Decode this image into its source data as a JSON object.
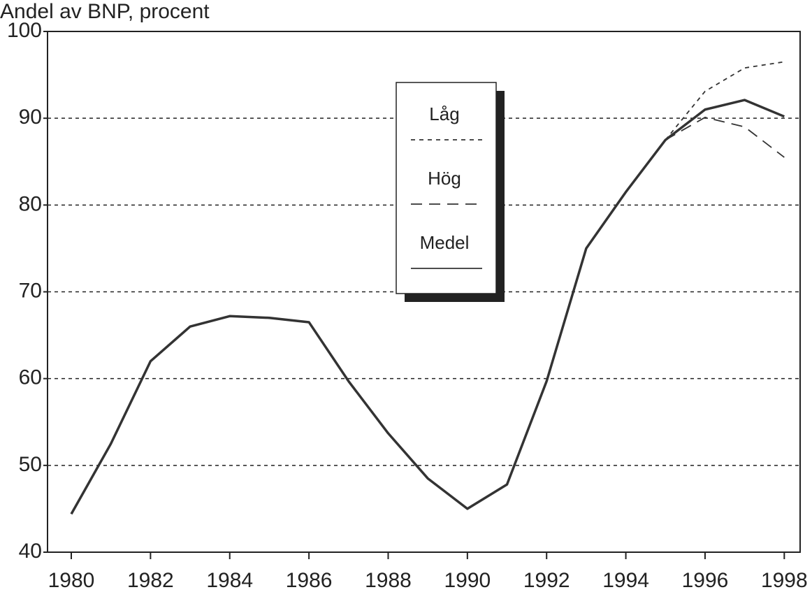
{
  "chart_data": {
    "type": "line",
    "title": "Andel av BNP, procent",
    "x": [
      1980,
      1981,
      1982,
      1983,
      1984,
      1985,
      1986,
      1987,
      1988,
      1989,
      1990,
      1991,
      1992,
      1993,
      1994,
      1995,
      1996,
      1997,
      1998
    ],
    "series": [
      {
        "name": "Låg",
        "color": "#333333",
        "dash": "short",
        "values": [
          null,
          null,
          null,
          null,
          null,
          null,
          null,
          null,
          null,
          null,
          null,
          null,
          null,
          null,
          null,
          87.5,
          93.1,
          95.8,
          96.5
        ]
      },
      {
        "name": "Hög",
        "color": "#333333",
        "dash": "long",
        "values": [
          null,
          null,
          null,
          null,
          null,
          null,
          null,
          null,
          null,
          null,
          null,
          null,
          null,
          null,
          null,
          87.5,
          90.1,
          89,
          85.5
        ]
      },
      {
        "name": "Medel",
        "color": "#333333",
        "dash": "solid",
        "values": [
          44.4,
          52.5,
          62,
          66,
          67.2,
          67,
          66.5,
          59.7,
          53.7,
          48.5,
          45,
          47.8,
          59.7,
          75,
          81.5,
          87.5,
          91,
          92.1,
          90.2
        ]
      }
    ],
    "xlim": [
      1979.4,
      1998.4
    ],
    "xticks": [
      1980,
      1982,
      1984,
      1986,
      1988,
      1990,
      1992,
      1994,
      1996,
      1998
    ],
    "ylim": [
      40,
      100
    ],
    "yticks": [
      40,
      50,
      60,
      70,
      80,
      90,
      100
    ],
    "grid": true
  }
}
